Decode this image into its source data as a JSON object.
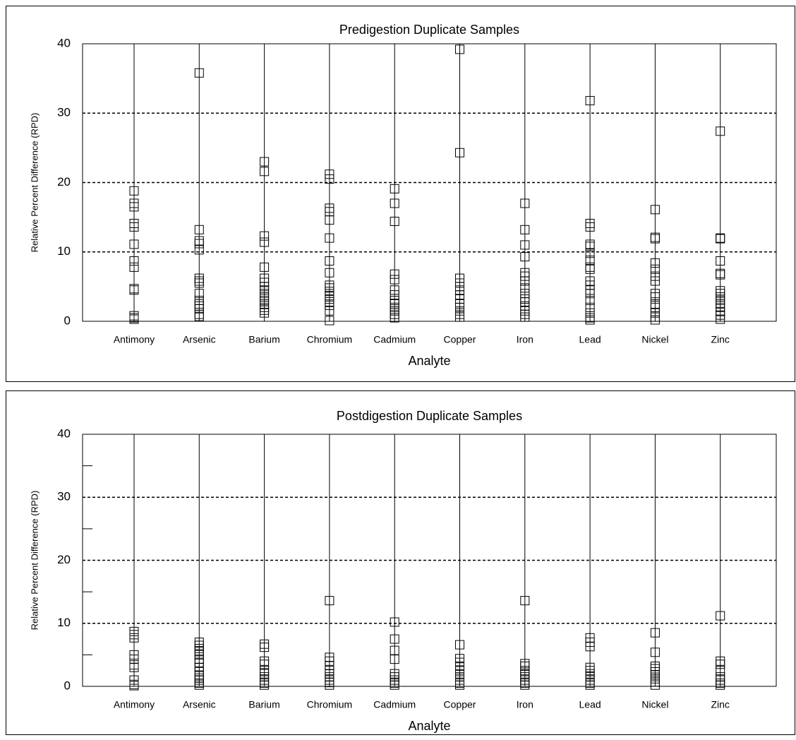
{
  "chart_data": [
    {
      "type": "scatter",
      "title": "Predigestion Duplicate Samples",
      "xlabel": "Analyte",
      "ylabel": "Relative Percent Difference (RPD)",
      "categories": [
        "Antimony",
        "Arsenic",
        "Barium",
        "Chromium",
        "Cadmium",
        "Copper",
        "Iron",
        "Lead",
        "Nickel",
        "Zinc"
      ],
      "points": [
        [
          18.8,
          17,
          16.5,
          14.1,
          13.6,
          11.1,
          8.7,
          7.8,
          4.7,
          4.5,
          0.8,
          0.5,
          0.3
        ],
        [
          35.8,
          13.2,
          11.6,
          11.2,
          10.3,
          6.2,
          5.8,
          5.5,
          4,
          3,
          2.5,
          2.2,
          1.8,
          1,
          0.7
        ],
        [
          23,
          21.6,
          12.3,
          11.4,
          7.8,
          6.2,
          5.6,
          5,
          4.5,
          4,
          3.5,
          3,
          2.5,
          2,
          1.6,
          1.2
        ],
        [
          21.2,
          20.5,
          16.3,
          15.8,
          14.6,
          12,
          8.7,
          7,
          5.2,
          4.8,
          4.3,
          3.7,
          3.2,
          2.8,
          2.3,
          1.5,
          0.1
        ],
        [
          19.1,
          17,
          14.4,
          6.8,
          6,
          4.5,
          3.8,
          3,
          2.5,
          2,
          1.5,
          1,
          0.5
        ],
        [
          39.2,
          24.3,
          6.2,
          5.5,
          5,
          4.5,
          3.8,
          3.2,
          2.5,
          2,
          1.5,
          1,
          0.6
        ],
        [
          17,
          13.2,
          11,
          9.3,
          7,
          6.5,
          5.8,
          4.8,
          4,
          3.2,
          2.8,
          2.2,
          1.5,
          1,
          0.6
        ],
        [
          31.8,
          14.1,
          13.6,
          11.1,
          10.8,
          9.8,
          8.8,
          7.8,
          7.5,
          5.8,
          5.2,
          4.5,
          4,
          3,
          2,
          1.2,
          0.5,
          0.2
        ],
        [
          16.1,
          12.1,
          11.9,
          8.4,
          7.5,
          6.5,
          5.8,
          4,
          3.5,
          2.5,
          2,
          1.2,
          0.6,
          0.2
        ],
        [
          27.4,
          12,
          11.9,
          8.7,
          6.9,
          6.7,
          4.4,
          4,
          3.5,
          3,
          2.5,
          2,
          1.4,
          0.9,
          0.3
        ]
      ],
      "color": "#000000",
      "ylim": [
        0,
        40
      ],
      "yticks": [
        0,
        10,
        20,
        30,
        40
      ],
      "grid": true
    },
    {
      "type": "scatter",
      "title": "Postdigestion Duplicate Samples",
      "xlabel": "Analyte",
      "ylabel": "Relative Percent Difference (RPD)",
      "categories": [
        "Antimony",
        "Arsenic",
        "Barium",
        "Chromium",
        "Cadmium",
        "Copper",
        "Iron",
        "Lead",
        "Nickel",
        "Zinc"
      ],
      "points": [
        [
          8.7,
          8.2,
          7.7,
          5,
          4.3,
          3.4,
          3,
          1,
          0.3,
          0.1
        ],
        [
          7,
          6.5,
          6,
          5.5,
          5,
          4.3,
          3.8,
          3,
          2.3,
          1.8,
          1.3,
          1,
          0.5,
          0.2
        ],
        [
          6.7,
          6.2,
          4,
          3.5,
          2.5,
          2,
          1.5,
          1,
          0.5,
          0.2
        ],
        [
          13.6,
          4.6,
          4,
          3.3,
          2.5,
          2,
          1.5,
          1,
          0.6,
          0.2
        ],
        [
          10.2,
          7.5,
          5.7,
          4.3,
          2,
          1.5,
          1,
          0.5,
          0.2
        ],
        [
          6.6,
          4.4,
          3.8,
          3.2,
          2.6,
          2,
          1.5,
          1,
          0.5,
          0.2
        ],
        [
          13.6,
          3.6,
          3.2,
          2.5,
          2,
          1.5,
          1,
          0.5,
          0.2
        ],
        [
          7.7,
          7,
          6.3,
          3,
          2.5,
          2,
          1.5,
          1,
          0.5,
          0.2
        ],
        [
          8.5,
          5.4,
          3.2,
          2.8,
          2.3,
          1.8,
          1.2,
          0.7,
          0.2
        ],
        [
          11.2,
          4,
          3.5,
          2.5,
          1.5,
          1,
          0.5,
          0.2
        ]
      ],
      "color": "#000000",
      "ylim": [
        0,
        40
      ],
      "yticks": [
        0,
        10,
        20,
        30,
        40
      ],
      "minor_yticks": [
        5,
        15,
        25,
        35
      ],
      "grid": true
    }
  ]
}
